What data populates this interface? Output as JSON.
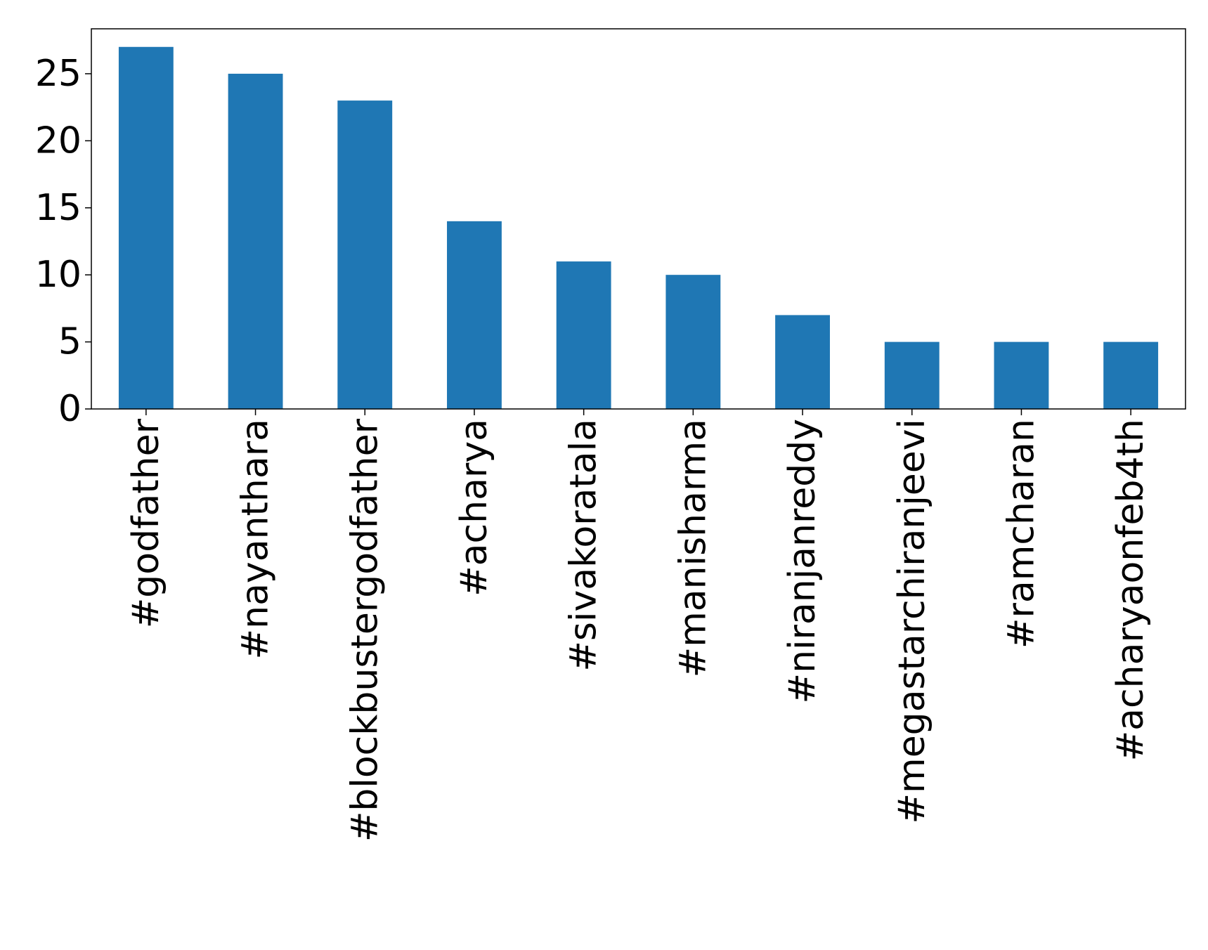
{
  "chart_data": {
    "type": "bar",
    "categories": [
      "#godfather",
      "#nayanthara",
      "#blockbustergodfather",
      "#acharya",
      "#sivakoratala",
      "#manisharma",
      "#niranjanreddy",
      "#megastarchiranjeevi",
      "#ramcharan",
      "#acharyaonfeb4th"
    ],
    "values": [
      27,
      25,
      23,
      14,
      11,
      10,
      7,
      5,
      5,
      5
    ],
    "color": "#1f77b4",
    "ylim": [
      0,
      28.35
    ],
    "yticks": [
      0,
      5,
      10,
      15,
      20,
      25
    ],
    "grid": false
  }
}
